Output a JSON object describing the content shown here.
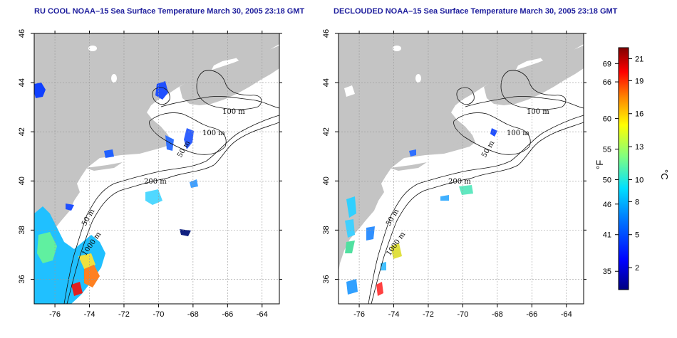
{
  "panels": [
    {
      "title": "RU COOL NOAA–15 Sea Surface Temperature March 30, 2005 23:18 GMT"
    },
    {
      "title": "DECLOUDED NOAA–15 Sea Surface Temperature March 30, 2005 23:18 GMT"
    }
  ],
  "axes": {
    "lon_ticks": [
      -76,
      -74,
      -72,
      -70,
      -68,
      -66,
      -64
    ],
    "lat_ticks": [
      46,
      44,
      42,
      40,
      38,
      36
    ],
    "lon_range": [
      -77.2,
      -63.0
    ],
    "lat_range": [
      35.0,
      46.0
    ]
  },
  "contour_labels": [
    "100 m",
    "100 m",
    "50 m",
    "200 m",
    "50 m",
    "1000 m"
  ],
  "colorbar": {
    "fahrenheit_ticks": [
      "69",
      "66",
      "60",
      "55",
      "50",
      "46",
      "41",
      "35"
    ],
    "celsius_ticks": [
      "21",
      "19",
      "16",
      "13",
      "10",
      "8",
      "5",
      "2"
    ],
    "fahrenheit_label": "°F",
    "celsius_label": "°C",
    "c_range": [
      0,
      22
    ]
  },
  "colors": {
    "land": "#c4c4c4",
    "ocean": "#ffffff",
    "title": "#1c1c9c"
  }
}
